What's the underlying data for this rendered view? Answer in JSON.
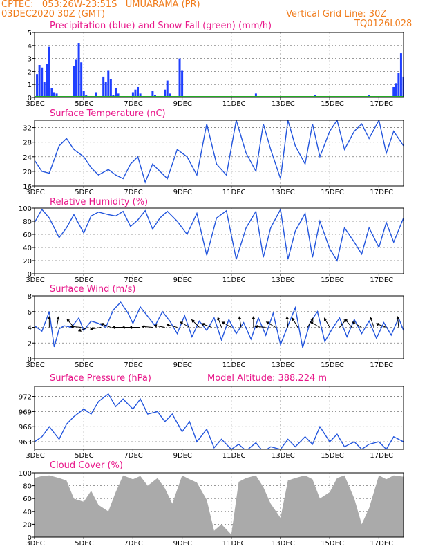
{
  "header": {
    "station": "CPTEC:   053:26W-23:51S   UMUARAMA (PR)",
    "date": "03DEC2020 30Z (GMT)",
    "grid_note": "Vertical Grid Line: 30Z",
    "model": "TQ0126L028"
  },
  "colors": {
    "precip": "#1f3fff",
    "snow": "#22aa22",
    "line": "#2255dd",
    "wind": "#000000",
    "cloud": "#aaaaaa",
    "title": "#e8178a",
    "header": "#f07c1c"
  },
  "x_axis": {
    "domain": [
      3,
      18
    ],
    "ticks": [
      3,
      5,
      7,
      9,
      11,
      13,
      15,
      17
    ],
    "tick_labels": [
      "3DEC",
      "5DEC",
      "7DEC",
      "9DEC",
      "11DEC",
      "13DEC",
      "15DEC",
      "17DEC"
    ]
  },
  "chart_data": [
    {
      "type": "bar",
      "title": "Precipitation (blue) and Snow Fall (green) (mm/h)",
      "ylim": [
        0,
        5
      ],
      "yticks": [
        0,
        1,
        2,
        3,
        4,
        5
      ],
      "series": [
        {
          "name": "Precipitation",
          "x": [
            3.1,
            3.2,
            3.3,
            3.4,
            3.5,
            3.6,
            3.7,
            3.8,
            3.9,
            4.6,
            4.7,
            4.8,
            4.9,
            5.0,
            5.1,
            5.5,
            5.8,
            5.9,
            6.0,
            6.1,
            6.2,
            6.3,
            6.4,
            7.0,
            7.1,
            7.2,
            7.3,
            7.8,
            7.9,
            8.3,
            8.4,
            8.5,
            8.9,
            9.0,
            12.0,
            14.4,
            16.6,
            17.6,
            17.7,
            17.8,
            17.9,
            18.0
          ],
          "values": [
            1.8,
            2.5,
            2.3,
            1.2,
            2.6,
            3.9,
            0.7,
            0.4,
            0.3,
            2.4,
            2.9,
            4.2,
            2.7,
            0.5,
            0.2,
            0.4,
            1.6,
            1.2,
            2.1,
            1.4,
            0.2,
            0.7,
            0.3,
            0.4,
            0.6,
            0.8,
            0.3,
            0.5,
            0.2,
            0.6,
            1.3,
            0.3,
            3.0,
            2.1,
            0.3,
            0.2,
            0.2,
            0.8,
            1.1,
            1.9,
            3.4,
            1.6
          ]
        },
        {
          "name": "Snow Fall",
          "x": [
            3,
            18
          ],
          "values": [
            0.05,
            0.05
          ]
        }
      ]
    },
    {
      "type": "line",
      "title": "Surface Temperature (nC)",
      "ylim": [
        16,
        34
      ],
      "yticks": [
        16,
        20,
        24,
        28,
        32
      ],
      "x": [
        3.0,
        3.3,
        3.6,
        4.0,
        4.3,
        4.6,
        5.0,
        5.3,
        5.6,
        6.0,
        6.3,
        6.6,
        6.9,
        7.2,
        7.5,
        7.8,
        8.1,
        8.4,
        8.8,
        9.2,
        9.6,
        10.0,
        10.4,
        10.8,
        11.2,
        11.6,
        12.0,
        12.3,
        12.6,
        13.0,
        13.3,
        13.6,
        14.0,
        14.3,
        14.6,
        15.0,
        15.3,
        15.6,
        16.0,
        16.3,
        16.6,
        17.0,
        17.3,
        17.6,
        18.0
      ],
      "values": [
        23,
        20,
        19.5,
        27,
        29,
        26,
        24,
        21,
        19,
        20.5,
        19,
        18,
        22,
        24,
        17,
        22,
        20,
        18,
        26,
        24,
        19,
        33,
        22,
        19,
        34,
        25,
        20,
        33,
        26,
        18,
        34,
        27,
        22,
        33,
        24,
        31,
        34,
        26,
        31,
        33,
        29,
        34,
        25,
        31,
        27
      ]
    },
    {
      "type": "line",
      "title": "Relative Humidity (%)",
      "ylim": [
        0,
        100
      ],
      "yticks": [
        0,
        20,
        40,
        60,
        80,
        100
      ],
      "x": [
        3.0,
        3.3,
        3.6,
        4.0,
        4.3,
        4.6,
        5.0,
        5.3,
        5.6,
        6.0,
        6.3,
        6.6,
        6.9,
        7.2,
        7.5,
        7.8,
        8.1,
        8.4,
        8.8,
        9.2,
        9.6,
        10.0,
        10.4,
        10.8,
        11.2,
        11.6,
        12.0,
        12.3,
        12.6,
        13.0,
        13.3,
        13.6,
        14.0,
        14.3,
        14.6,
        15.0,
        15.3,
        15.6,
        16.0,
        16.3,
        16.6,
        17.0,
        17.3,
        17.6,
        18.0
      ],
      "values": [
        78,
        98,
        85,
        55,
        70,
        90,
        62,
        88,
        94,
        90,
        88,
        95,
        72,
        82,
        96,
        68,
        85,
        95,
        80,
        60,
        92,
        28,
        85,
        96,
        22,
        70,
        95,
        25,
        70,
        98,
        22,
        65,
        92,
        25,
        80,
        38,
        20,
        70,
        48,
        30,
        70,
        40,
        78,
        48,
        85
      ]
    },
    {
      "type": "line",
      "title": "Surface Wind (m/s)",
      "ylim": [
        0,
        8
      ],
      "yticks": [
        0,
        2,
        4,
        6,
        8
      ],
      "x": [
        3.0,
        3.3,
        3.6,
        3.8,
        4.0,
        4.2,
        4.5,
        4.8,
        5.0,
        5.3,
        5.6,
        5.9,
        6.2,
        6.5,
        6.8,
        7.0,
        7.3,
        7.6,
        7.9,
        8.2,
        8.5,
        8.8,
        9.1,
        9.4,
        9.7,
        10.0,
        10.3,
        10.6,
        10.9,
        11.2,
        11.5,
        11.8,
        12.1,
        12.4,
        12.7,
        13.0,
        13.3,
        13.6,
        13.9,
        14.2,
        14.5,
        14.8,
        15.1,
        15.4,
        15.7,
        16.0,
        16.3,
        16.6,
        16.9,
        17.2,
        17.5,
        17.8,
        18.0
      ],
      "values": [
        4.2,
        3.5,
        6.0,
        1.5,
        3.8,
        4.2,
        4.0,
        5.2,
        3.6,
        4.8,
        4.5,
        4.0,
        6.2,
        7.2,
        5.8,
        4.5,
        6.6,
        5.4,
        4.2,
        6.0,
        4.8,
        3.2,
        5.5,
        2.8,
        4.8,
        3.6,
        5.2,
        2.4,
        5.0,
        3.2,
        4.6,
        2.5,
        5.2,
        3.0,
        5.8,
        1.8,
        4.2,
        6.5,
        1.4,
        4.6,
        6.0,
        2.2,
        3.8,
        5.2,
        2.8,
        5.0,
        3.2,
        4.8,
        2.6,
        4.6,
        3.0,
        5.2,
        3.6
      ]
    },
    {
      "type": "line",
      "title": "Surface Pressure (hPa)",
      "subtitle": "Model Altitude: 388.224 m",
      "ylim": [
        961.5,
        974
      ],
      "yticks": [
        963,
        966,
        969,
        972
      ],
      "x": [
        3.0,
        3.3,
        3.6,
        4.0,
        4.3,
        4.6,
        5.0,
        5.3,
        5.6,
        6.0,
        6.3,
        6.6,
        7.0,
        7.3,
        7.6,
        8.0,
        8.3,
        8.6,
        9.0,
        9.3,
        9.6,
        10.0,
        10.3,
        10.6,
        11.0,
        11.3,
        11.6,
        12.0,
        12.3,
        12.6,
        13.0,
        13.3,
        13.6,
        14.0,
        14.3,
        14.6,
        15.0,
        15.3,
        15.6,
        16.0,
        16.3,
        16.6,
        17.0,
        17.3,
        17.6,
        18.0
      ],
      "values": [
        963,
        964,
        966,
        963.5,
        966.5,
        968,
        969.5,
        968.5,
        971,
        972.5,
        970,
        971.5,
        969.5,
        971.5,
        968.5,
        969,
        967,
        968.5,
        965,
        967,
        963,
        965.5,
        961.8,
        963.5,
        961.5,
        962.5,
        961.2,
        962.8,
        961,
        962,
        961.5,
        963.5,
        962,
        964,
        962.5,
        966,
        963,
        964.5,
        962,
        963,
        961.5,
        962.5,
        963,
        961.5,
        964,
        963
      ]
    },
    {
      "type": "area",
      "title": "Cloud Cover (%)",
      "ylim": [
        0,
        100
      ],
      "yticks": [
        0,
        20,
        40,
        60,
        80,
        100
      ],
      "x": [
        3.0,
        3.3,
        3.6,
        4.0,
        4.3,
        4.6,
        5.0,
        5.3,
        5.6,
        6.0,
        6.3,
        6.6,
        7.0,
        7.3,
        7.6,
        8.0,
        8.3,
        8.6,
        9.0,
        9.3,
        9.6,
        10.0,
        10.3,
        10.6,
        11.0,
        11.3,
        11.6,
        12.0,
        12.3,
        12.6,
        13.0,
        13.3,
        13.6,
        14.0,
        14.3,
        14.6,
        15.0,
        15.3,
        15.6,
        16.0,
        16.3,
        16.6,
        17.0,
        17.3,
        17.6,
        18.0
      ],
      "values": [
        92,
        95,
        96,
        92,
        88,
        60,
        55,
        72,
        50,
        40,
        70,
        96,
        90,
        95,
        80,
        92,
        76,
        52,
        96,
        90,
        85,
        58,
        10,
        20,
        4,
        86,
        92,
        96,
        78,
        52,
        30,
        88,
        92,
        96,
        90,
        60,
        70,
        92,
        96,
        60,
        20,
        45,
        96,
        90,
        96,
        94
      ]
    }
  ],
  "wind_vectors": [
    {
      "x": 3.6,
      "dir": -90
    },
    {
      "x": 3.9,
      "dir": -80
    },
    {
      "x": 4.6,
      "dir": -130
    },
    {
      "x": 4.9,
      "dir": -175
    },
    {
      "x": 5.2,
      "dir": -200
    },
    {
      "x": 5.7,
      "dir": -190
    },
    {
      "x": 6.1,
      "dir": -160
    },
    {
      "x": 6.6,
      "dir": -180
    },
    {
      "x": 7.0,
      "dir": -180
    },
    {
      "x": 7.3,
      "dir": -180
    },
    {
      "x": 7.8,
      "dir": -175
    },
    {
      "x": 8.3,
      "dir": -170
    },
    {
      "x": 8.8,
      "dir": -165
    },
    {
      "x": 9.3,
      "dir": -150
    },
    {
      "x": 9.7,
      "dir": -135
    },
    {
      "x": 10.2,
      "dir": -160
    },
    {
      "x": 10.6,
      "dir": -110
    },
    {
      "x": 11.0,
      "dir": -150
    },
    {
      "x": 11.4,
      "dir": -100
    },
    {
      "x": 11.9,
      "dir": -90
    },
    {
      "x": 12.4,
      "dir": -175
    },
    {
      "x": 12.8,
      "dir": -150
    },
    {
      "x": 13.3,
      "dir": -95
    },
    {
      "x": 13.7,
      "dir": -120
    },
    {
      "x": 14.1,
      "dir": -60
    },
    {
      "x": 14.6,
      "dir": -150
    },
    {
      "x": 15.0,
      "dir": -120
    },
    {
      "x": 15.4,
      "dir": -50
    },
    {
      "x": 15.9,
      "dir": -130
    },
    {
      "x": 16.3,
      "dir": -150
    },
    {
      "x": 16.8,
      "dir": -110
    },
    {
      "x": 17.3,
      "dir": -160
    },
    {
      "x": 17.8,
      "dir": -95
    }
  ]
}
